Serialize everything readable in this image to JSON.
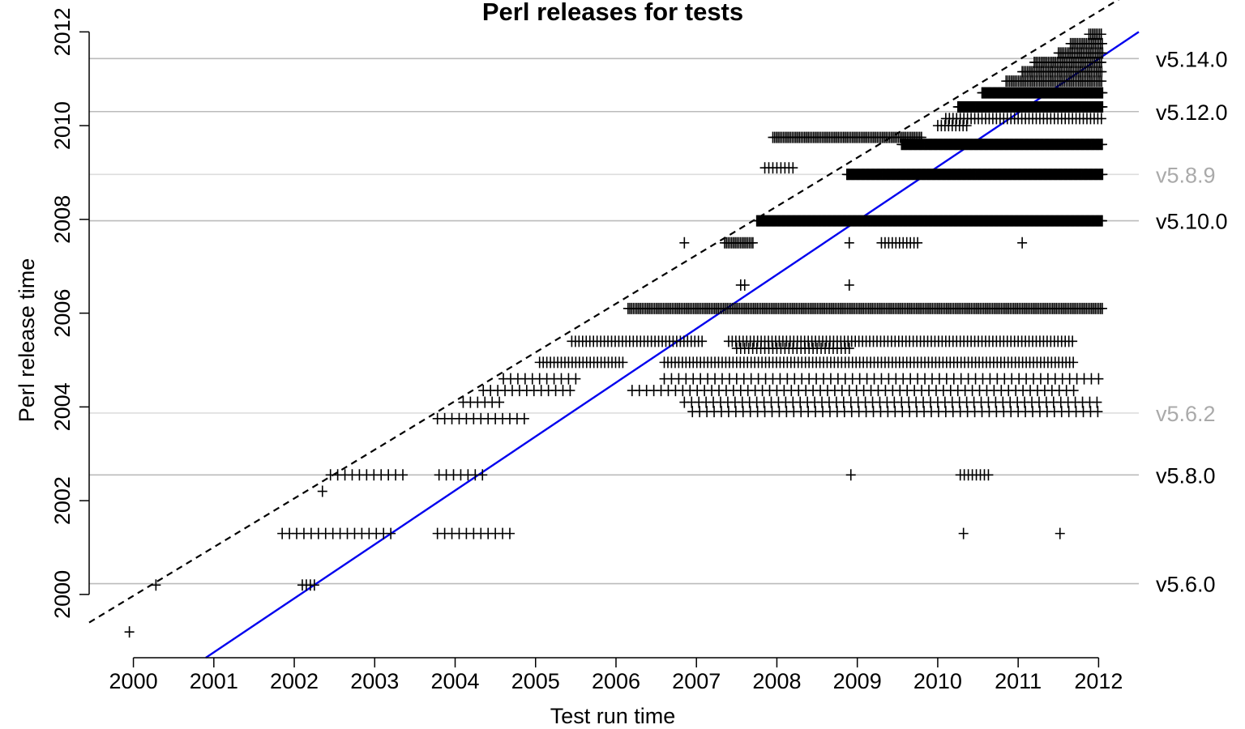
{
  "chart_data": {
    "type": "scatter",
    "title": "Perl releases for tests",
    "xlabel": "Test run time",
    "ylabel": "Perl release time",
    "xlim": [
      1999.45,
      2012.5
    ],
    "ylim": [
      1998.65,
      2012.3
    ],
    "x_ticks": [
      2000,
      2001,
      2002,
      2003,
      2004,
      2005,
      2006,
      2007,
      2008,
      2009,
      2010,
      2011,
      2012
    ],
    "y_ticks": [
      2000,
      2002,
      2004,
      2006,
      2008,
      2010,
      2012
    ],
    "marker": "+",
    "colors": {
      "points": "#000000",
      "fit_line": "#0000ee",
      "release_line_major": "#bbbbbb",
      "release_line_minor": "#dddddd",
      "minor_label": "#aaaaaa"
    },
    "release_lines": [
      {
        "label": "v5.6.0",
        "y": 2000.23,
        "emphasis": "major"
      },
      {
        "label": "v5.8.0",
        "y": 2002.55,
        "emphasis": "major"
      },
      {
        "label": "v5.6.2",
        "y": 2003.87,
        "emphasis": "minor"
      },
      {
        "label": "v5.10.0",
        "y": 2007.97,
        "emphasis": "major"
      },
      {
        "label": "v5.8.9",
        "y": 2008.96,
        "emphasis": "minor"
      },
      {
        "label": "v5.12.0",
        "y": 2010.3,
        "emphasis": "major"
      },
      {
        "label": "v5.14.0",
        "y": 2011.43,
        "emphasis": "major"
      }
    ],
    "reference_lines": [
      {
        "style": "dashed",
        "color": "#000000",
        "from": [
          1999.45,
          1999.4
        ],
        "to": [
          2012.45,
          2012.9
        ]
      },
      {
        "style": "solid",
        "color": "#0000ee",
        "from": [
          2000.9,
          1998.65
        ],
        "to": [
          2012.5,
          2012.0
        ]
      }
    ],
    "segments": [
      {
        "y": 1999.2,
        "x0": 1999.95,
        "x1": 1999.97,
        "density": "few"
      },
      {
        "y": 2000.2,
        "x0": 2000.28,
        "x1": 2000.28,
        "density": "few"
      },
      {
        "y": 2000.2,
        "x0": 2002.1,
        "x1": 2002.28,
        "density": "few"
      },
      {
        "y": 2001.3,
        "x0": 2001.85,
        "x1": 2003.2,
        "density": "sparse"
      },
      {
        "y": 2001.3,
        "x0": 2003.78,
        "x1": 2004.72,
        "density": "sparse"
      },
      {
        "y": 2001.3,
        "x0": 2010.32,
        "x1": 2010.32,
        "density": "few"
      },
      {
        "y": 2001.3,
        "x0": 2011.52,
        "x1": 2011.55,
        "density": "few"
      },
      {
        "y": 2002.2,
        "x0": 2002.35,
        "x1": 2002.35,
        "density": "few"
      },
      {
        "y": 2002.55,
        "x0": 2002.45,
        "x1": 2003.35,
        "density": "sparse"
      },
      {
        "y": 2002.55,
        "x0": 2003.8,
        "x1": 2004.38,
        "density": "sparse"
      },
      {
        "y": 2002.55,
        "x0": 2008.92,
        "x1": 2008.92,
        "density": "few"
      },
      {
        "y": 2002.55,
        "x0": 2010.28,
        "x1": 2010.65,
        "density": "few"
      },
      {
        "y": 2003.75,
        "x0": 2003.78,
        "x1": 2004.92,
        "density": "sparse"
      },
      {
        "y": 2003.9,
        "x0": 2006.95,
        "x1": 2012.05,
        "density": "sparse"
      },
      {
        "y": 2004.1,
        "x0": 2004.1,
        "x1": 2004.6,
        "density": "sparse"
      },
      {
        "y": 2004.1,
        "x0": 2006.85,
        "x1": 2012.0,
        "density": "sparse"
      },
      {
        "y": 2004.35,
        "x0": 2004.35,
        "x1": 2005.5,
        "density": "sparse"
      },
      {
        "y": 2004.35,
        "x0": 2006.2,
        "x1": 2011.7,
        "density": "sparse"
      },
      {
        "y": 2004.6,
        "x0": 2004.6,
        "x1": 2005.5,
        "density": "sparse"
      },
      {
        "y": 2004.6,
        "x0": 2006.6,
        "x1": 2012.05,
        "density": "sparse"
      },
      {
        "y": 2004.95,
        "x0": 2005.05,
        "x1": 2006.1,
        "density": "medium"
      },
      {
        "y": 2004.95,
        "x0": 2006.6,
        "x1": 2011.7,
        "density": "medium"
      },
      {
        "y": 2005.4,
        "x0": 2005.45,
        "x1": 2007.1,
        "density": "medium"
      },
      {
        "y": 2005.4,
        "x0": 2007.4,
        "x1": 2011.7,
        "density": "medium"
      },
      {
        "y": 2005.25,
        "x0": 2007.5,
        "x1": 2008.9,
        "density": "few"
      },
      {
        "y": 2006.1,
        "x0": 2006.15,
        "x1": 2012.05,
        "density": "dense"
      },
      {
        "y": 2006.6,
        "x0": 2007.55,
        "x1": 2007.6,
        "density": "few"
      },
      {
        "y": 2006.6,
        "x0": 2008.9,
        "x1": 2008.9,
        "density": "few"
      },
      {
        "y": 2007.5,
        "x0": 2006.85,
        "x1": 2006.85,
        "density": "few"
      },
      {
        "y": 2007.5,
        "x0": 2007.35,
        "x1": 2007.72,
        "density": "dense"
      },
      {
        "y": 2007.5,
        "x0": 2008.9,
        "x1": 2008.9,
        "density": "few"
      },
      {
        "y": 2007.5,
        "x0": 2009.3,
        "x1": 2009.75,
        "density": "medium"
      },
      {
        "y": 2007.5,
        "x0": 2011.05,
        "x1": 2011.05,
        "density": "few"
      },
      {
        "y": 2007.97,
        "x0": 2007.75,
        "x1": 2012.05,
        "density": "solid"
      },
      {
        "y": 2008.96,
        "x0": 2008.87,
        "x1": 2012.05,
        "density": "solid"
      },
      {
        "y": 2009.1,
        "x0": 2007.85,
        "x1": 2008.2,
        "density": "few"
      },
      {
        "y": 2009.6,
        "x0": 2009.55,
        "x1": 2012.05,
        "density": "solid"
      },
      {
        "y": 2009.75,
        "x0": 2007.95,
        "x1": 2009.8,
        "density": "dense"
      },
      {
        "y": 2010.0,
        "x0": 2010.0,
        "x1": 2010.4,
        "density": "medium"
      },
      {
        "y": 2010.15,
        "x0": 2010.1,
        "x1": 2012.05,
        "density": "medium"
      },
      {
        "y": 2010.4,
        "x0": 2010.25,
        "x1": 2012.05,
        "density": "solid"
      },
      {
        "y": 2010.7,
        "x0": 2010.55,
        "x1": 2012.05,
        "density": "solid"
      },
      {
        "y": 2010.95,
        "x0": 2010.85,
        "x1": 2012.05,
        "density": "dense"
      },
      {
        "y": 2011.15,
        "x0": 2011.05,
        "x1": 2012.05,
        "density": "dense"
      },
      {
        "y": 2011.35,
        "x0": 2011.2,
        "x1": 2012.05,
        "density": "dense"
      },
      {
        "y": 2011.55,
        "x0": 2011.5,
        "x1": 2012.05,
        "density": "dense"
      },
      {
        "y": 2011.75,
        "x0": 2011.65,
        "x1": 2012.05,
        "density": "dense"
      },
      {
        "y": 2011.95,
        "x0": 2011.88,
        "x1": 2012.05,
        "density": "dense"
      }
    ]
  }
}
